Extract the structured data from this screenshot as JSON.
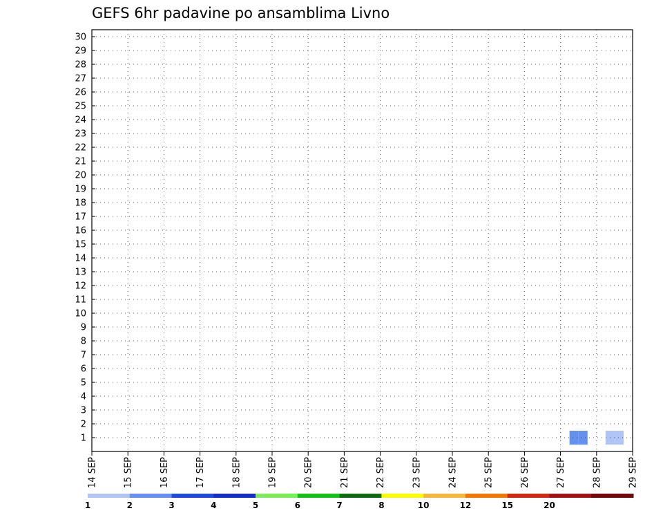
{
  "chart_data": {
    "type": "heatmap",
    "title": "GEFS 6hr padavine po ansamblima Livno",
    "xlabel": "",
    "ylabel": "",
    "x_ticks": [
      "14 SEP",
      "15 SEP",
      "16 SEP",
      "17 SEP",
      "18 SEP",
      "19 SEP",
      "20 SEP",
      "21 SEP",
      "22 SEP",
      "23 SEP",
      "24 SEP",
      "25 SEP",
      "26 SEP",
      "27 SEP",
      "28 SEP",
      "29 SEP"
    ],
    "y_ticks": [
      1,
      2,
      3,
      4,
      5,
      6,
      7,
      8,
      9,
      10,
      11,
      12,
      13,
      14,
      15,
      16,
      17,
      18,
      19,
      20,
      21,
      22,
      23,
      24,
      25,
      26,
      27,
      28,
      29,
      30
    ],
    "grid": true,
    "time_step_hours": 6,
    "legend_levels": [
      "1",
      "2",
      "3",
      "4",
      "5",
      "6",
      "7",
      "8",
      "10",
      "12",
      "15",
      "20"
    ],
    "legend_colors": [
      "#b0c4f8",
      "#6490ee",
      "#1a4bdc",
      "#1030c8",
      "#78ee5a",
      "#16c01a",
      "#0a6e0a",
      "#fcfc00",
      "#fcb441",
      "#f07800",
      "#d02a0c",
      "#a01414",
      "#6e0a0a"
    ],
    "columns_t": [
      2,
      3,
      4,
      5,
      6,
      7,
      8,
      9,
      10,
      11,
      12,
      13,
      14,
      15,
      16,
      17,
      21,
      22,
      23,
      24,
      25,
      26,
      27,
      28,
      29,
      30,
      31,
      32,
      33,
      34,
      35,
      36,
      37,
      48,
      49,
      50,
      51,
      52,
      53,
      54,
      55,
      56,
      57,
      58,
      59,
      60,
      61
    ],
    "members": [
      [
        0,
        0,
        0,
        0,
        0,
        0,
        0,
        0,
        0,
        0,
        0,
        0,
        0,
        0,
        0,
        0,
        0,
        0,
        0,
        0,
        0,
        0,
        0,
        0,
        0,
        0,
        0,
        0,
        0,
        0,
        0,
        0,
        0,
        0,
        0,
        0,
        0,
        0,
        2,
        2,
        0,
        0,
        1,
        1,
        0,
        0,
        0
      ],
      [
        0,
        0,
        0,
        0,
        0,
        0,
        0,
        0,
        0,
        0,
        0,
        0,
        0,
        0,
        0,
        0,
        0,
        0,
        0,
        0,
        0,
        0,
        0,
        0,
        0,
        0,
        0,
        0,
        0,
        0,
        0,
        0,
        0,
        0,
        0,
        0,
        0,
        0,
        0,
        0,
        0,
        0,
        0,
        0,
        0,
        0,
        0
      ],
      [
        0,
        0,
        0,
        0,
        0,
        0,
        0,
        0,
        0,
        0,
        0,
        0,
        0,
        0,
        0,
        0,
        0,
        0,
        0,
        0,
        0,
        0,
        0,
        0,
        0,
        0,
        0,
        0,
        0,
        0,
        0,
        0,
        0,
        0,
        0,
        0,
        0,
        0,
        0,
        0,
        0,
        0,
        0,
        0,
        0,
        0,
        0
      ],
      [
        0,
        0,
        0,
        0,
        0,
        0,
        0,
        0,
        0,
        0,
        0,
        0,
        0,
        0,
        0,
        0,
        0,
        0,
        0,
        0,
        0,
        0,
        0,
        0,
        0,
        0,
        0,
        0,
        0,
        0,
        0,
        0,
        0,
        0,
        0,
        0,
        0,
        0,
        0,
        0,
        0,
        0,
        0,
        0,
        0,
        0,
        0
      ],
      [
        0,
        0,
        0,
        0,
        0,
        0,
        0,
        0,
        0,
        0,
        0,
        0,
        0,
        0,
        0,
        0,
        0,
        0,
        0,
        0,
        0,
        0,
        0,
        0,
        0,
        0,
        0,
        0,
        0,
        0,
        0,
        0,
        0,
        0,
        0,
        0,
        0,
        0,
        0,
        0,
        0,
        0,
        0,
        0,
        0,
        0,
        0
      ],
      [
        0,
        0,
        0,
        0,
        0,
        0,
        0,
        0,
        0,
        0,
        0,
        0,
        0,
        0,
        0,
        0,
        0,
        0,
        0,
        0,
        0,
        0,
        0,
        0,
        0,
        0,
        0,
        0,
        0,
        0,
        0,
        0,
        0,
        0,
        0,
        0,
        0,
        0,
        0,
        0,
        0,
        0,
        0,
        0,
        0,
        0,
        0
      ],
      [
        0,
        0,
        0,
        0,
        0,
        0,
        0,
        0,
        0,
        0,
        0,
        0,
        0,
        0,
        0,
        0,
        0,
        0,
        0,
        0,
        0,
        0,
        0,
        0,
        0,
        0,
        0,
        0,
        0,
        0,
        0,
        0,
        0,
        0,
        0,
        0,
        0,
        0,
        0,
        0,
        0,
        0,
        0,
        0,
        0,
        0,
        0
      ],
      [
        0,
        0,
        0,
        0,
        0,
        0,
        0,
        0,
        0,
        0,
        0,
        0,
        0,
        0,
        0,
        0,
        0,
        0,
        0,
        0,
        0,
        0,
        0,
        0,
        0,
        0,
        0,
        0,
        0,
        0,
        0,
        0,
        0,
        0,
        0,
        0,
        0,
        0,
        0,
        0,
        0,
        0,
        0,
        0,
        0,
        0,
        0
      ],
      [
        0,
        0,
        0,
        0,
        0,
        0,
        0,
        0,
        0,
        0,
        0,
        0,
        0,
        0,
        0,
        0,
        0,
        0,
        0,
        0,
        0,
        0,
        0,
        0,
        0,
        0,
        0,
        0,
        0,
        0,
        0,
        0,
        0,
        0,
        0,
        0,
        0,
        0,
        0,
        0,
        0,
        0,
        0,
        0,
        0,
        0,
        0
      ],
      [
        0,
        0,
        0,
        0,
        0,
        0,
        0,
        0,
        0,
        0,
        0,
        0,
        0,
        0,
        0,
        0,
        0,
        0,
        0,
        0,
        0,
        0,
        0,
        0,
        0,
        0,
        0,
        0,
        0,
        0,
        0,
        0,
        0,
        0,
        0,
        0,
        0,
        0,
        0,
        0,
        0,
        0,
        0,
        0,
        0,
        0,
        0
      ],
      [
        0,
        0,
        0,
        0,
        0,
        0,
        0,
        0,
        0,
        0,
        0,
        0,
        0,
        0,
        0,
        0,
        0,
        0,
        0,
        0,
        0,
        0,
        0,
        0,
        0,
        0,
        0,
        0,
        0,
        0,
        0,
        0,
        0,
        0,
        0,
        0,
        0,
        0,
        0,
        0,
        0,
        0,
        0,
        0,
        0,
        0,
        0
      ],
      [
        0,
        0,
        0,
        0,
        0,
        0,
        0,
        0,
        0,
        0,
        0,
        0,
        0,
        0,
        0,
        0,
        0,
        0,
        0,
        0,
        0,
        0,
        0,
        0,
        0,
        0,
        0,
        0,
        0,
        0,
        0,
        0,
        0,
        0,
        0,
        0,
        0,
        0,
        0,
        0,
        0,
        0,
        0,
        0,
        0,
        0,
        0
      ],
      [
        0,
        0,
        0,
        0,
        0,
        0,
        0,
        0,
        0,
        0,
        0,
        0,
        0,
        0,
        0,
        0,
        0,
        0,
        0,
        0,
        0,
        0,
        0,
        0,
        0,
        0,
        0,
        0,
        0,
        0,
        0,
        0,
        0,
        0,
        0,
        0,
        0,
        0,
        0,
        0,
        0,
        0,
        0,
        0,
        0,
        0,
        0
      ],
      [
        0,
        0,
        0,
        0,
        0,
        0,
        0,
        0,
        0,
        0,
        0,
        0,
        0,
        0,
        0,
        0,
        0,
        0,
        0,
        0,
        0,
        0,
        0,
        0,
        0,
        0,
        0,
        0,
        0,
        0,
        0,
        0,
        0,
        0,
        0,
        0,
        0,
        0,
        0,
        0,
        0,
        0,
        0,
        0,
        0,
        0,
        0
      ],
      [
        0,
        0,
        0,
        0,
        0,
        0,
        0,
        0,
        0,
        0,
        0,
        0,
        0,
        0,
        0,
        0,
        0,
        0,
        0,
        0,
        0,
        0,
        0,
        0,
        0,
        0,
        0,
        0,
        0,
        0,
        0,
        0,
        0,
        0,
        0,
        0,
        0,
        0,
        0,
        0,
        0,
        0,
        0,
        0,
        0,
        0,
        0
      ],
      [
        0,
        0,
        0,
        0,
        0,
        0,
        0,
        0,
        0,
        0,
        0,
        0,
        0,
        0,
        0,
        0,
        0,
        0,
        0,
        0,
        0,
        0,
        0,
        0,
        0,
        0,
        0,
        0,
        0,
        0,
        0,
        0,
        0,
        0,
        0,
        0,
        0,
        0,
        0,
        0,
        0,
        0,
        0,
        0,
        0,
        0,
        0
      ],
      [
        0,
        0,
        0,
        0,
        0,
        0,
        0,
        0,
        0,
        0,
        0,
        0,
        0,
        0,
        0,
        0,
        0,
        0,
        0,
        0,
        0,
        0,
        0,
        0,
        0,
        0,
        0,
        0,
        0,
        0,
        0,
        0,
        0,
        0,
        0,
        0,
        0,
        0,
        0,
        0,
        0,
        0,
        0,
        0,
        0,
        0,
        0
      ],
      [
        0,
        0,
        0,
        0,
        0,
        0,
        0,
        0,
        0,
        0,
        0,
        0,
        0,
        0,
        0,
        0,
        0,
        0,
        0,
        0,
        0,
        0,
        0,
        0,
        0,
        0,
        0,
        0,
        0,
        0,
        0,
        0,
        0,
        0,
        0,
        0,
        0,
        0,
        0,
        0,
        0,
        0,
        0,
        0,
        0,
        0,
        0
      ],
      [
        0,
        0,
        0,
        0,
        0,
        0,
        0,
        0,
        0,
        0,
        0,
        0,
        0,
        0,
        0,
        0,
        0,
        0,
        0,
        0,
        0,
        0,
        0,
        0,
        0,
        0,
        0,
        0,
        0,
        0,
        0,
        0,
        0,
        0,
        0,
        0,
        0,
        0,
        0,
        0,
        0,
        0,
        0,
        0,
        0,
        0,
        0
      ],
      [
        0,
        0,
        0,
        0,
        0,
        0,
        0,
        0,
        0,
        0,
        0,
        0,
        0,
        0,
        0,
        0,
        0,
        0,
        0,
        0,
        0,
        0,
        0,
        0,
        0,
        0,
        0,
        0,
        0,
        0,
        0,
        0,
        0,
        0,
        0,
        0,
        0,
        0,
        0,
        0,
        0,
        0,
        0,
        0,
        0,
        0,
        0
      ],
      [
        0,
        0,
        0,
        0,
        0,
        0,
        0,
        0,
        0,
        0,
        0,
        0,
        0,
        0,
        0,
        0,
        0,
        0,
        0,
        0,
        0,
        0,
        0,
        0,
        0,
        0,
        0,
        0,
        0,
        0,
        0,
        0,
        0,
        0,
        0,
        0,
        0,
        0,
        0,
        0,
        0,
        0,
        0,
        0,
        0,
        0,
        0
      ],
      [
        0,
        0,
        0,
        0,
        0,
        0,
        0,
        0,
        0,
        0,
        0,
        0,
        0,
        0,
        0,
        0,
        0,
        0,
        0,
        0,
        0,
        0,
        0,
        0,
        0,
        0,
        0,
        0,
        0,
        0,
        0,
        0,
        0,
        0,
        0,
        0,
        0,
        0,
        0,
        0,
        0,
        0,
        0,
        0,
        0,
        0,
        0
      ],
      [
        0,
        0,
        0,
        0,
        0,
        0,
        0,
        0,
        0,
        0,
        0,
        0,
        0,
        0,
        0,
        0,
        0,
        0,
        0,
        0,
        0,
        0,
        0,
        0,
        0,
        0,
        0,
        0,
        0,
        0,
        0,
        0,
        0,
        0,
        0,
        0,
        0,
        0,
        0,
        0,
        0,
        0,
        0,
        0,
        0,
        0,
        0
      ],
      [
        0,
        0,
        0,
        0,
        0,
        0,
        0,
        0,
        0,
        0,
        0,
        0,
        0,
        0,
        0,
        0,
        0,
        0,
        0,
        0,
        0,
        0,
        0,
        0,
        0,
        0,
        0,
        0,
        0,
        0,
        0,
        0,
        0,
        0,
        0,
        0,
        0,
        0,
        0,
        0,
        0,
        0,
        0,
        0,
        0,
        0,
        0
      ],
      [
        0,
        0,
        0,
        0,
        0,
        0,
        0,
        0,
        0,
        0,
        0,
        0,
        0,
        0,
        0,
        0,
        0,
        0,
        0,
        0,
        0,
        0,
        0,
        0,
        0,
        0,
        0,
        0,
        0,
        0,
        0,
        0,
        0,
        0,
        0,
        0,
        0,
        0,
        0,
        0,
        0,
        0,
        0,
        0,
        0,
        0,
        0
      ],
      [
        0,
        0,
        0,
        0,
        0,
        0,
        0,
        0,
        0,
        0,
        0,
        0,
        0,
        0,
        0,
        0,
        0,
        0,
        0,
        0,
        0,
        0,
        0,
        0,
        0,
        0,
        0,
        0,
        0,
        0,
        0,
        0,
        0,
        0,
        0,
        0,
        0,
        0,
        0,
        0,
        0,
        0,
        0,
        0,
        0,
        0,
        0
      ],
      [
        0,
        0,
        0,
        0,
        0,
        0,
        0,
        0,
        0,
        0,
        0,
        0,
        0,
        0,
        0,
        0,
        0,
        0,
        0,
        0,
        0,
        0,
        0,
        0,
        0,
        0,
        0,
        0,
        0,
        0,
        0,
        0,
        0,
        0,
        0,
        0,
        0,
        0,
        0,
        0,
        0,
        0,
        0,
        0,
        0,
        0,
        0
      ],
      [
        0,
        0,
        0,
        0,
        0,
        0,
        0,
        0,
        0,
        0,
        0,
        0,
        0,
        0,
        0,
        0,
        0,
        0,
        0,
        0,
        0,
        0,
        0,
        0,
        0,
        0,
        0,
        0,
        0,
        0,
        0,
        0,
        0,
        0,
        0,
        0,
        0,
        0,
        0,
        0,
        0,
        0,
        0,
        0,
        0,
        0,
        0
      ],
      [
        0,
        0,
        0,
        0,
        0,
        0,
        0,
        0,
        0,
        0,
        0,
        0,
        0,
        0,
        0,
        0,
        0,
        0,
        0,
        0,
        0,
        0,
        0,
        0,
        0,
        0,
        0,
        0,
        0,
        0,
        0,
        0,
        0,
        0,
        0,
        0,
        0,
        0,
        0,
        0,
        0,
        0,
        0,
        0,
        0,
        0,
        0
      ],
      [
        0,
        0,
        0,
        0,
        0,
        0,
        0,
        0,
        0,
        0,
        0,
        0,
        0,
        0,
        0,
        0,
        0,
        0,
        0,
        0,
        0,
        0,
        0,
        0,
        0,
        0,
        0,
        0,
        0,
        0,
        0,
        0,
        0,
        0,
        0,
        0,
        0,
        0,
        0,
        0,
        0,
        0,
        0,
        0,
        0,
        0,
        0
      ]
    ]
  }
}
